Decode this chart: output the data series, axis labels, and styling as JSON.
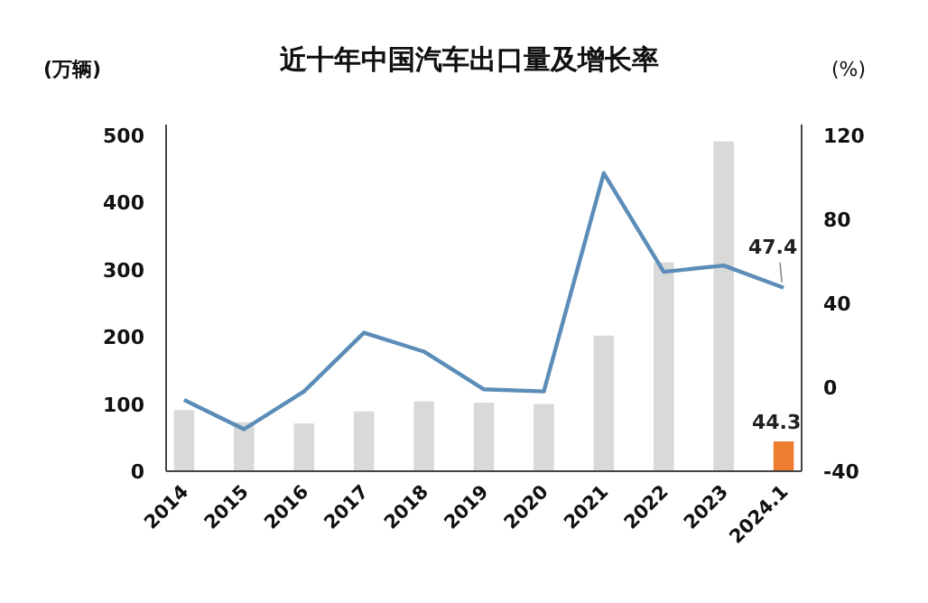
{
  "chart_data": {
    "type": "bar",
    "title": "近十年中国汽车出口量及增长率",
    "ylabel": "(万辆)",
    "y2label": "(%)",
    "categories": [
      "2014",
      "2015",
      "2016",
      "2017",
      "2018",
      "2019",
      "2020",
      "2021",
      "2022",
      "2023",
      "2024.1"
    ],
    "series": [
      {
        "colors": [
          "#d9d9d9",
          "#d9d9d9",
          "#d9d9d9",
          "#d9d9d9",
          "#d9d9d9",
          "#d9d9d9",
          "#d9d9d9",
          "#d9d9d9",
          "#d9d9d9",
          "#d9d9d9",
          "#ed7d31"
        ],
        "values": [
          91,
          73,
          71,
          89,
          104,
          102,
          100,
          202,
          311,
          491,
          44.3
        ],
        "value_labels": [
          null,
          null,
          null,
          null,
          null,
          null,
          null,
          null,
          null,
          null,
          "44.3"
        ]
      },
      {
        "type": "line",
        "axis": "y2",
        "color": "#5b8db8",
        "values": [
          -6,
          -20,
          -2,
          26,
          17,
          -1,
          -2,
          102,
          55,
          58,
          47.4
        ],
        "value_labels": [
          null,
          null,
          null,
          null,
          null,
          null,
          null,
          null,
          null,
          null,
          "47.4"
        ]
      }
    ],
    "ylim": [
      0,
      500
    ],
    "yticks": [
      0,
      100,
      200,
      300,
      400,
      500
    ],
    "y2lim": [
      -40,
      120
    ],
    "y2ticks": [
      -40,
      0,
      40,
      80,
      120
    ]
  }
}
